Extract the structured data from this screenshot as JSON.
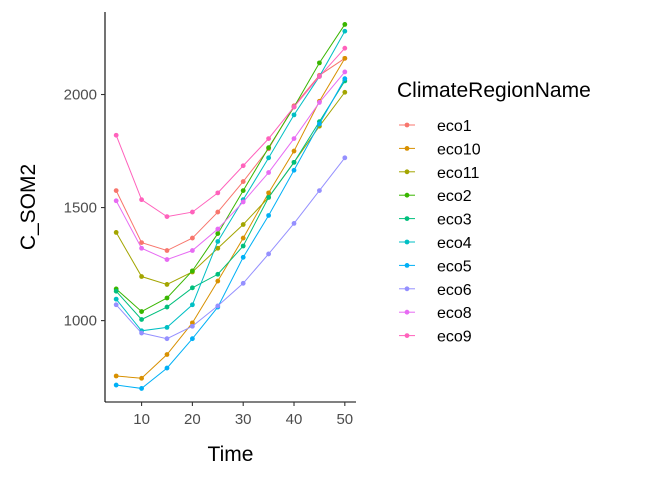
{
  "chart_data": {
    "type": "line",
    "title": "",
    "xlabel": "Time",
    "ylabel": "C_SOM2",
    "xlim": [
      2.8,
      52.2
    ],
    "ylim": [
      640,
      2365
    ],
    "x_ticks": [
      10,
      20,
      30,
      40,
      50
    ],
    "y_ticks": [
      1000,
      1500,
      2000
    ],
    "grid": false,
    "legend": {
      "title": "ClimateRegionName",
      "position": "right"
    },
    "x": [
      5,
      10,
      15,
      20,
      25,
      30,
      35,
      40,
      45,
      50
    ],
    "series": [
      {
        "name": "eco1",
        "color": "#F8766D",
        "values": [
          1575,
          1345,
          1310,
          1365,
          1480,
          1615,
          1760,
          1950,
          2085,
          2160
        ]
      },
      {
        "name": "eco10",
        "color": "#D89000",
        "values": [
          755,
          745,
          850,
          990,
          1175,
          1365,
          1565,
          1750,
          1970,
          2160
        ]
      },
      {
        "name": "eco11",
        "color": "#A3A500",
        "values": [
          1390,
          1195,
          1160,
          1215,
          1320,
          1425,
          1545,
          1700,
          1860,
          2010
        ]
      },
      {
        "name": "eco2",
        "color": "#39B600",
        "values": [
          1140,
          1040,
          1100,
          1220,
          1385,
          1575,
          1765,
          1945,
          2140,
          2310
        ]
      },
      {
        "name": "eco3",
        "color": "#00BF7D",
        "values": [
          1130,
          1005,
          1060,
          1145,
          1205,
          1330,
          1545,
          1700,
          1880,
          2060
        ]
      },
      {
        "name": "eco4",
        "color": "#00BFC4",
        "values": [
          1095,
          955,
          970,
          1070,
          1350,
          1535,
          1720,
          1910,
          2080,
          2280
        ]
      },
      {
        "name": "eco5",
        "color": "#00B0F6",
        "values": [
          715,
          700,
          790,
          920,
          1060,
          1280,
          1465,
          1665,
          1870,
          2070
        ]
      },
      {
        "name": "eco6",
        "color": "#9590FF",
        "values": [
          1070,
          945,
          920,
          975,
          1065,
          1165,
          1295,
          1430,
          1575,
          1720
        ]
      },
      {
        "name": "eco8",
        "color": "#E76BF3",
        "values": [
          1530,
          1320,
          1270,
          1310,
          1405,
          1525,
          1655,
          1805,
          1965,
          2100
        ]
      },
      {
        "name": "eco9",
        "color": "#FF62BC",
        "values": [
          1820,
          1535,
          1460,
          1480,
          1565,
          1685,
          1805,
          1945,
          2080,
          2205
        ]
      }
    ]
  }
}
